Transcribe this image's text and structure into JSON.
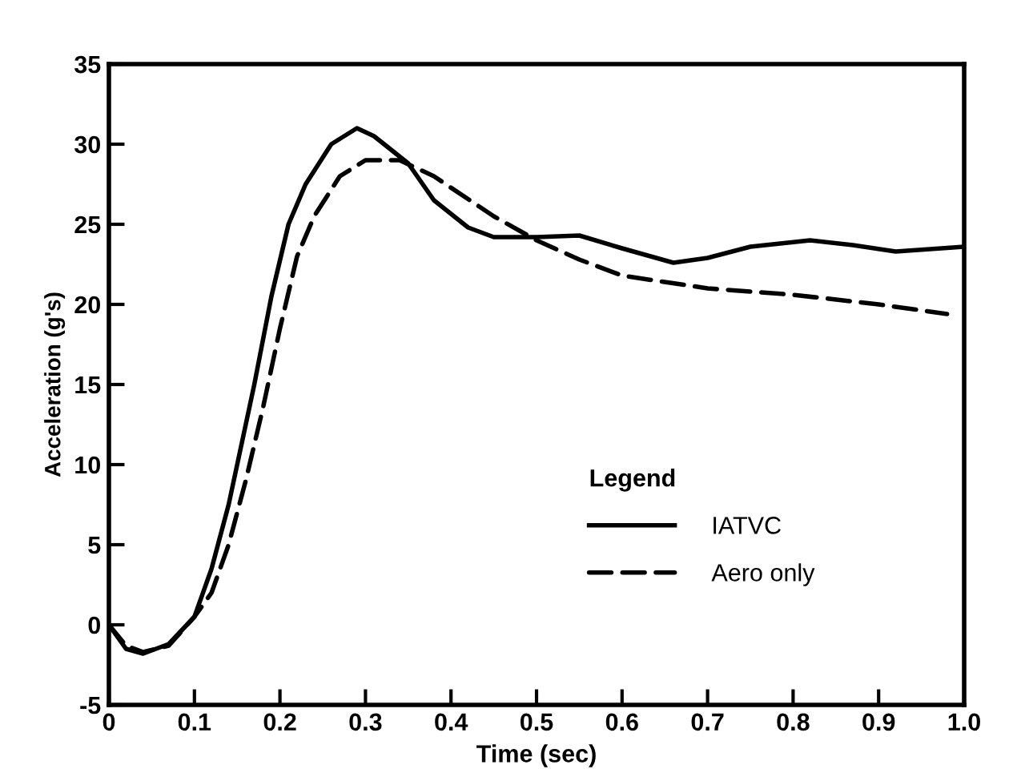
{
  "chart_data": {
    "type": "line",
    "xlabel": "Time (sec)",
    "ylabel": "Acceleration (g's)",
    "legend_title": "Legend",
    "legend": "bottom right",
    "grid": false,
    "marker": "none",
    "xlim": [
      0,
      1.0
    ],
    "xticks": [
      {
        "value": 0,
        "label": "0"
      },
      0.1,
      0.2,
      0.3,
      0.4,
      0.5,
      0.6,
      0.7,
      0.8,
      0.9,
      {
        "value": 1.0,
        "label": "1.0"
      }
    ],
    "ylim": [
      -5,
      35
    ],
    "yticks": [
      -5,
      0,
      5,
      10,
      15,
      20,
      25,
      30,
      35
    ],
    "series": [
      {
        "name": "IATVC",
        "color": "#000000",
        "line_style": "solid",
        "x": [
          0,
          0.02,
          0.04,
          0.07,
          0.1,
          0.12,
          0.14,
          0.15,
          0.17,
          0.19,
          0.21,
          0.23,
          0.26,
          0.29,
          0.31,
          0.35,
          0.38,
          0.42,
          0.45,
          0.5,
          0.55,
          0.6,
          0.66,
          0.7,
          0.75,
          0.82,
          0.87,
          0.92,
          1.0
        ],
        "values": [
          0,
          -1.5,
          -1.8,
          -1.2,
          0.5,
          3.5,
          7.5,
          10,
          15,
          20.5,
          25,
          27.5,
          30,
          31,
          30.5,
          28.8,
          26.5,
          24.8,
          24.2,
          24.2,
          24.3,
          23.5,
          22.6,
          22.9,
          23.6,
          24,
          23.7,
          23.3,
          23.6
        ]
      },
      {
        "name": "Aero only",
        "color": "#000000",
        "line_style": "dashed",
        "x": [
          0,
          0.02,
          0.04,
          0.07,
          0.1,
          0.12,
          0.14,
          0.16,
          0.18,
          0.2,
          0.22,
          0.24,
          0.27,
          0.3,
          0.34,
          0.38,
          0.45,
          0.5,
          0.55,
          0.6,
          0.7,
          0.8,
          0.9,
          0.98
        ],
        "values": [
          0,
          -1.3,
          -1.7,
          -1.3,
          0.5,
          2,
          5,
          9,
          13.5,
          18.5,
          23,
          25.5,
          28,
          29,
          29,
          28,
          25.5,
          24,
          22.8,
          21.8,
          21,
          20.6,
          20,
          19.4
        ]
      }
    ]
  }
}
